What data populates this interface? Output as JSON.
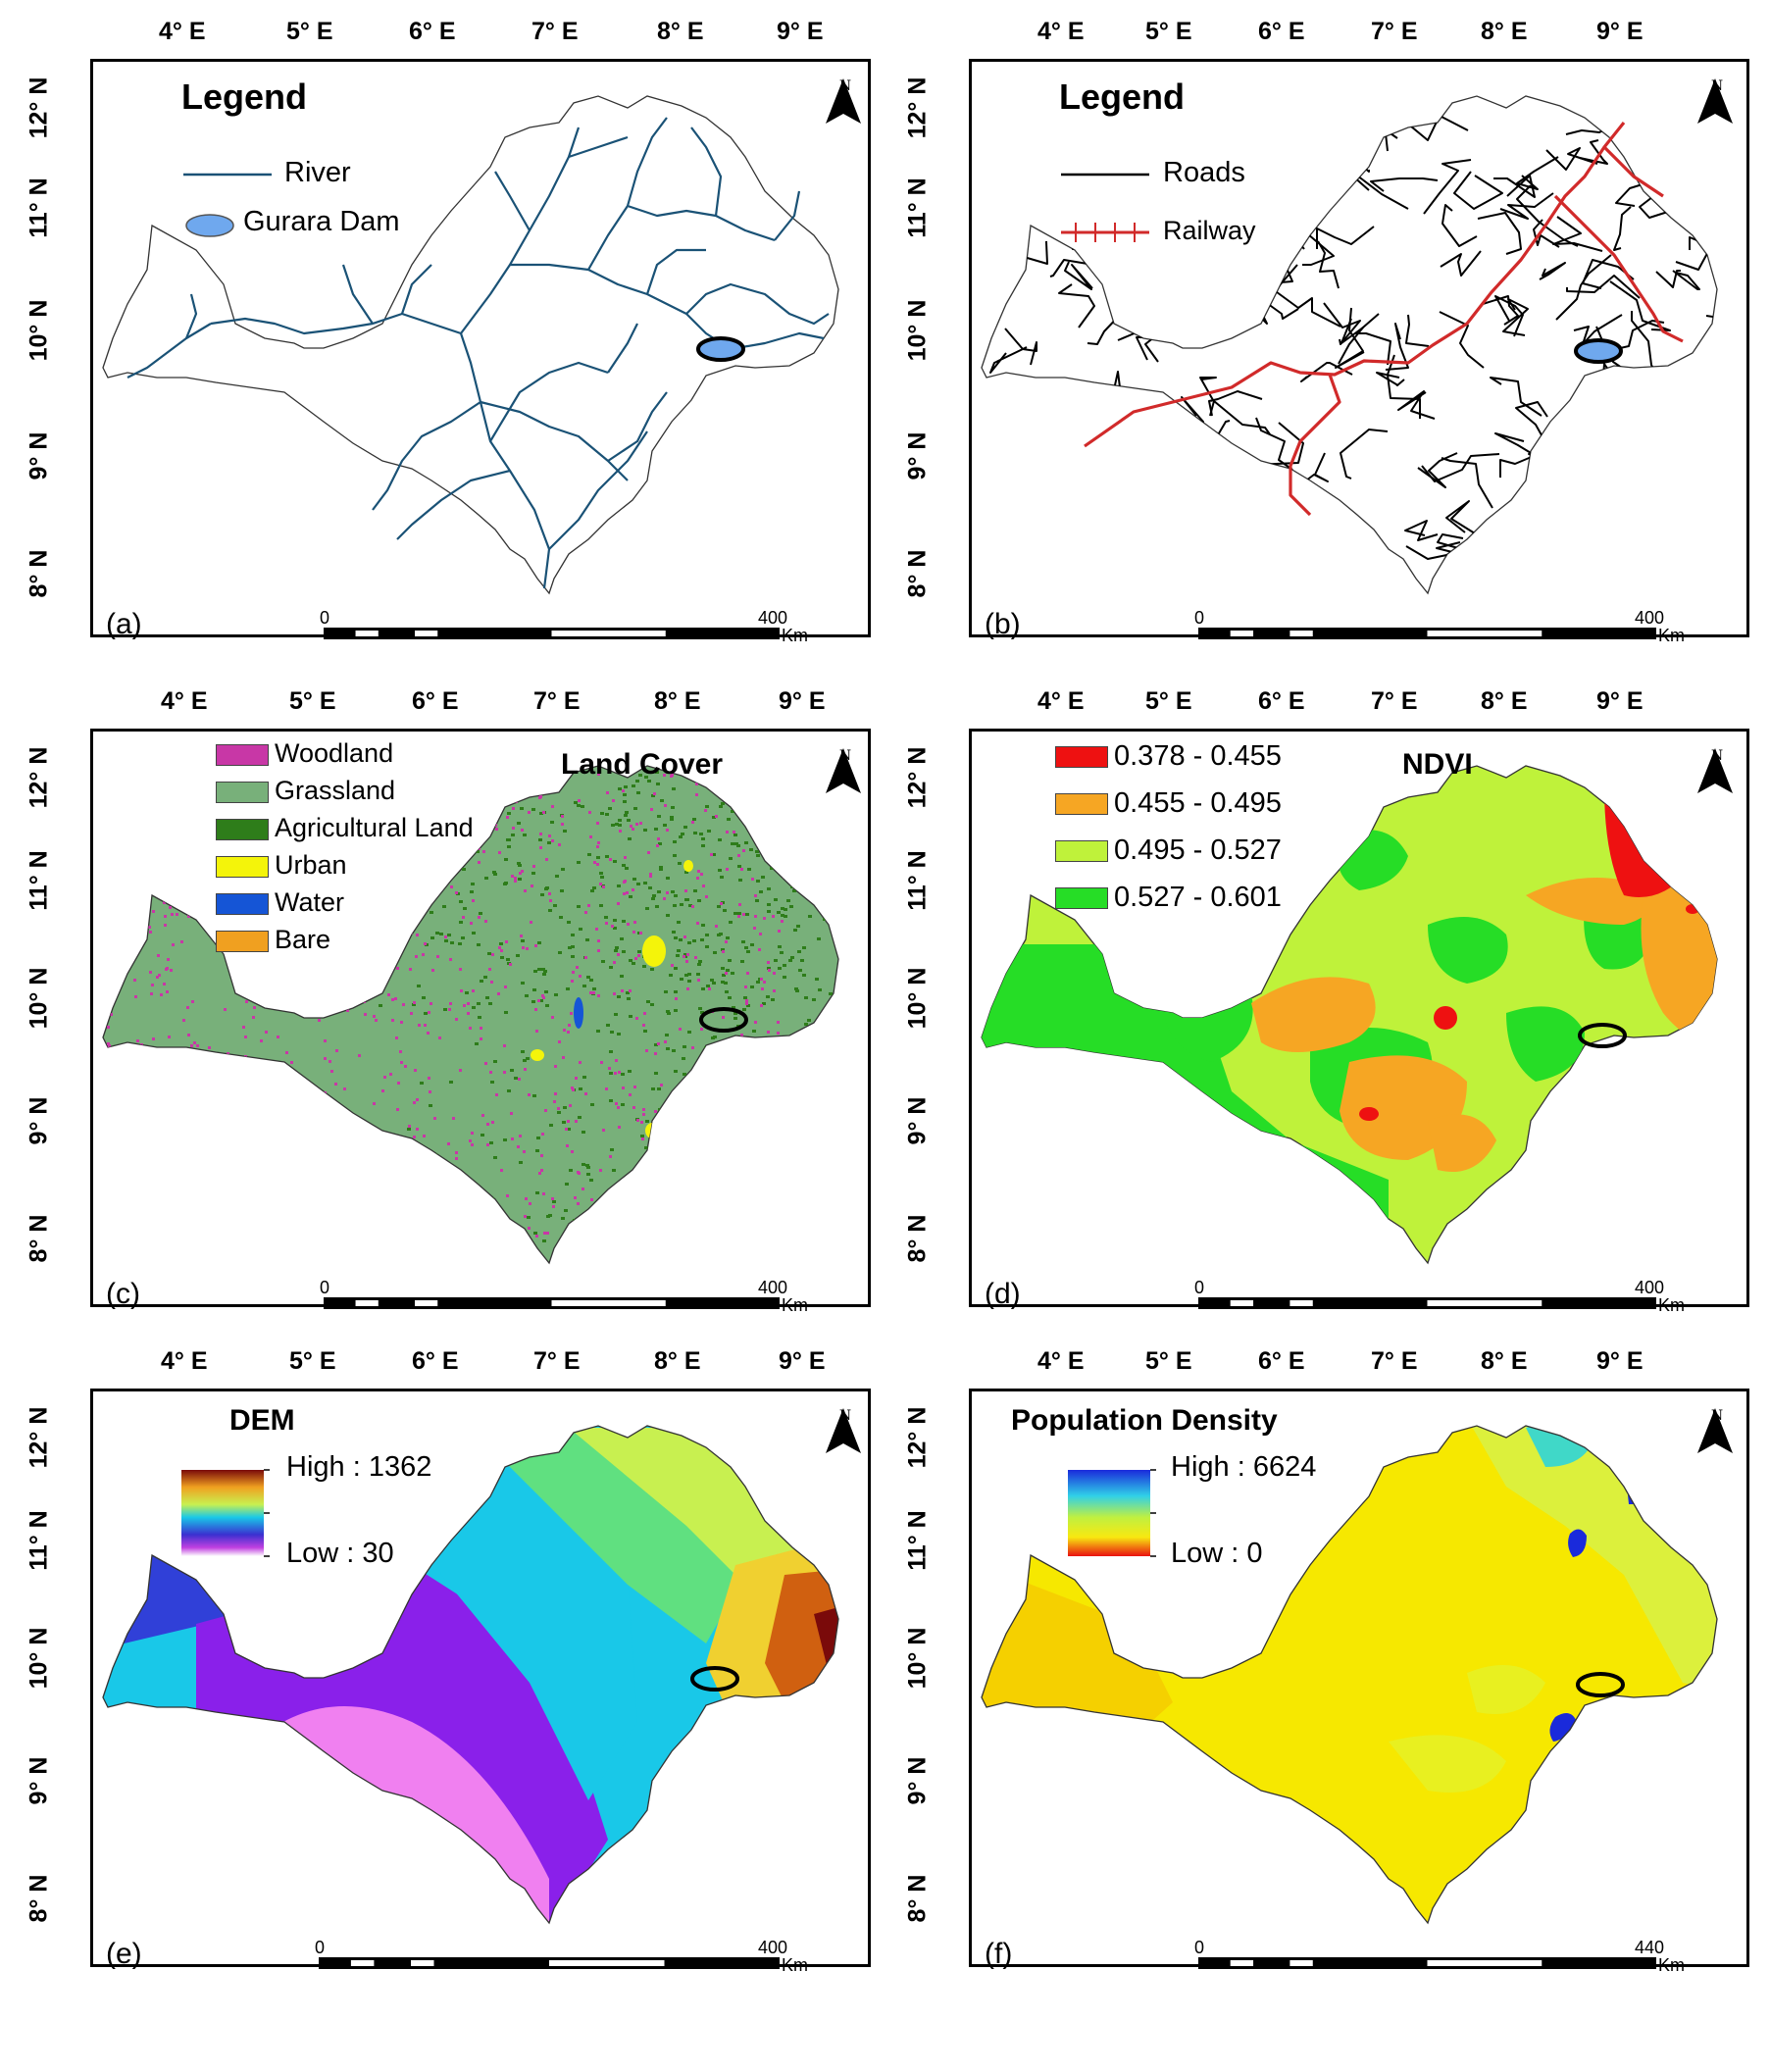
{
  "longitudes": [
    "4° E",
    "5° E",
    "6° E",
    "7° E",
    "8° E",
    "9° E"
  ],
  "latitudes": [
    "12° N",
    "11° N",
    "10° N",
    "9° N",
    "8° N"
  ],
  "north_label": "N",
  "scale_unit": "Km",
  "colors": {
    "river": "#1a5276",
    "dam": "#6fa8ee",
    "road": "#000000",
    "railway": "#d12a2a",
    "woodland": "#c837a6",
    "grassland": "#78b07a",
    "agricultural": "#2e7d1a",
    "urban": "#f4f40a",
    "water": "#1555d6",
    "bare": "#f0a020",
    "ndvi_1": "#ee1111",
    "ndvi_2": "#f6a623",
    "ndvi_3": "#bff23a",
    "ndvi_4": "#26dd26"
  },
  "panels": [
    {
      "id": "a",
      "label": "(a)",
      "title": "Legend",
      "legend": [
        {
          "label": "River",
          "icon": "river-line"
        },
        {
          "label": "Gurara Dam",
          "icon": "dam-ellipse"
        }
      ],
      "scale": {
        "start": "0",
        "end": "400"
      }
    },
    {
      "id": "b",
      "label": "(b)",
      "title": "Legend",
      "legend": [
        {
          "label": "Roads",
          "icon": "road-line"
        },
        {
          "label": "Railway",
          "icon": "railway-line"
        }
      ],
      "scale": {
        "start": "0",
        "end": "400"
      }
    },
    {
      "id": "c",
      "label": "(c)",
      "title": "Land Cover",
      "legend": [
        {
          "label": "Woodland",
          "color": "#c837a6"
        },
        {
          "label": "Grassland",
          "color": "#78b07a"
        },
        {
          "label": "Agricultural Land",
          "color": "#2e7d1a"
        },
        {
          "label": "Urban",
          "color": "#f4f40a"
        },
        {
          "label": "Water",
          "color": "#1555d6"
        },
        {
          "label": "Bare",
          "color": "#f0a020"
        }
      ],
      "scale": {
        "start": "0",
        "end": "400"
      }
    },
    {
      "id": "d",
      "label": "(d)",
      "title": "NDVI",
      "legend": [
        {
          "label": "0.378 - 0.455",
          "color": "#ee1111"
        },
        {
          "label": "0.455 - 0.495",
          "color": "#f6a623"
        },
        {
          "label": "0.495 - 0.527",
          "color": "#bff23a"
        },
        {
          "label": "0.527 - 0.601",
          "color": "#26dd26"
        }
      ],
      "scale": {
        "start": "0",
        "end": "400"
      }
    },
    {
      "id": "e",
      "label": "(e)",
      "title": "DEM",
      "legend": [
        {
          "label": "High : 1362"
        },
        {
          "label": "Low : 30"
        }
      ],
      "scale": {
        "start": "0",
        "end": "400"
      }
    },
    {
      "id": "f",
      "label": "(f)",
      "title": "Population Density",
      "legend": [
        {
          "label": "High : 6624"
        },
        {
          "label": "Low : 0"
        }
      ],
      "scale": {
        "start": "0",
        "end": "440"
      }
    }
  ]
}
